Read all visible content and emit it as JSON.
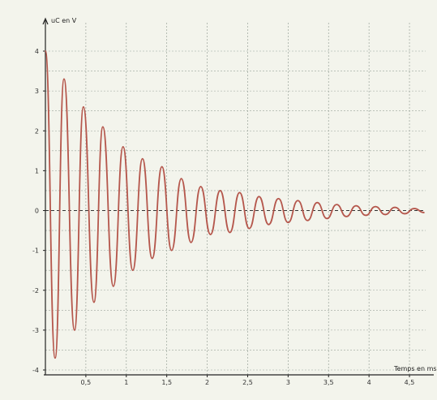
{
  "chart_data": {
    "type": "line",
    "title": "",
    "ylabel": "uC en V",
    "xlabel": "Temps en ms",
    "xlim": [
      0,
      4.7
    ],
    "ylim": [
      -4,
      4.5
    ],
    "grid": true,
    "xticks": [
      0.5,
      1,
      1.5,
      2,
      2.5,
      3,
      3.5,
      4,
      4.5
    ],
    "xtick_labels": [
      "0,5",
      "1",
      "1,5",
      "2",
      "2,5",
      "3",
      "3,5",
      "4",
      "4,5"
    ],
    "yticks": [
      -4,
      -3,
      -2,
      -1,
      0,
      1,
      2,
      3,
      4
    ],
    "ytick_labels": [
      "-4",
      "-3",
      "-2",
      "-1",
      "0",
      "1",
      "2",
      "3",
      "4"
    ],
    "series": [
      {
        "color": "#b5574c",
        "x": [
          0,
          0.12,
          0.23,
          0.36,
          0.47,
          0.6,
          0.71,
          0.84,
          0.96,
          1.08,
          1.2,
          1.32,
          1.44,
          1.56,
          1.68,
          1.8,
          1.92,
          2.04,
          2.16,
          2.28,
          2.4,
          2.52,
          2.64,
          2.76,
          2.88,
          3.0,
          3.12,
          3.24,
          3.36,
          3.48,
          3.6,
          3.72,
          3.84,
          3.96,
          4.08,
          4.2,
          4.32,
          4.44,
          4.56,
          4.68
        ],
        "values": [
          4.0,
          -3.7,
          3.3,
          -3.0,
          2.6,
          -2.3,
          2.1,
          -1.9,
          1.6,
          -1.5,
          1.3,
          -1.2,
          1.1,
          -1.0,
          0.8,
          -0.8,
          0.6,
          -0.6,
          0.5,
          -0.55,
          0.45,
          -0.45,
          0.35,
          -0.35,
          0.3,
          -0.3,
          0.25,
          -0.25,
          0.2,
          -0.2,
          0.15,
          -0.15,
          0.12,
          -0.12,
          0.1,
          -0.1,
          0.08,
          -0.08,
          0.05,
          -0.05
        ]
      }
    ]
  }
}
